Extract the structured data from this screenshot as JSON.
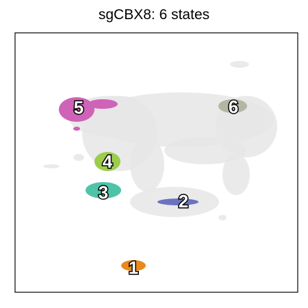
{
  "title": "sgCBX8: 6 states",
  "chart_data": {
    "type": "scatter",
    "title": "sgCBX8: 6 states",
    "xlabel": "",
    "ylabel": "",
    "axes_ticks": false,
    "background_color": "#e6e6e6",
    "states": [
      {
        "label": "1",
        "color": "#e8891c"
      },
      {
        "label": "2",
        "color": "#6b73bf"
      },
      {
        "label": "3",
        "color": "#4ec3a8"
      },
      {
        "label": "4",
        "color": "#9ccc4c"
      },
      {
        "label": "5",
        "color": "#cf63b8"
      },
      {
        "label": "6",
        "color": "#b4b5a3"
      }
    ]
  }
}
